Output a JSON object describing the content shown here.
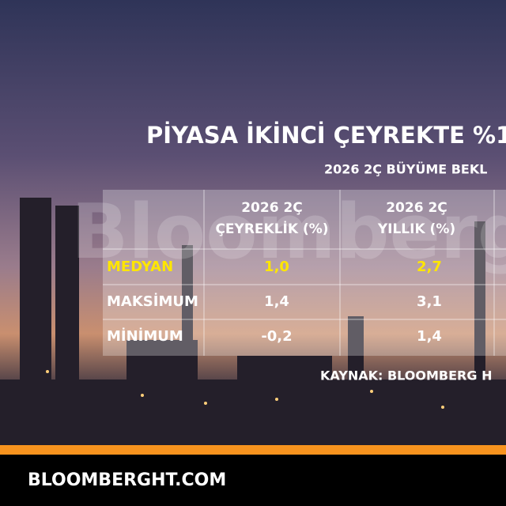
{
  "header": {
    "title": "PİYASA İKİNCİ ÇEYREKTE %1",
    "subtitle": "2026 2Ç BÜYÜME BEKL"
  },
  "watermark": "Bloomberg",
  "table": {
    "columns": [
      [
        "2026 2Ç",
        "ÇEYREKLİK (%)"
      ],
      [
        "2026 2Ç",
        "YILLIK (%)"
      ]
    ],
    "rows": [
      [
        "MEDYAN",
        "1,0",
        "2,7"
      ],
      [
        "MAKSİMUM",
        "1,4",
        "3,1"
      ],
      [
        "MİNİMUM",
        "-0,2",
        "1,4"
      ]
    ]
  },
  "source": "KAYNAK: BLOOMBERG H",
  "footer": "BLOOMBERGHT.COM"
}
